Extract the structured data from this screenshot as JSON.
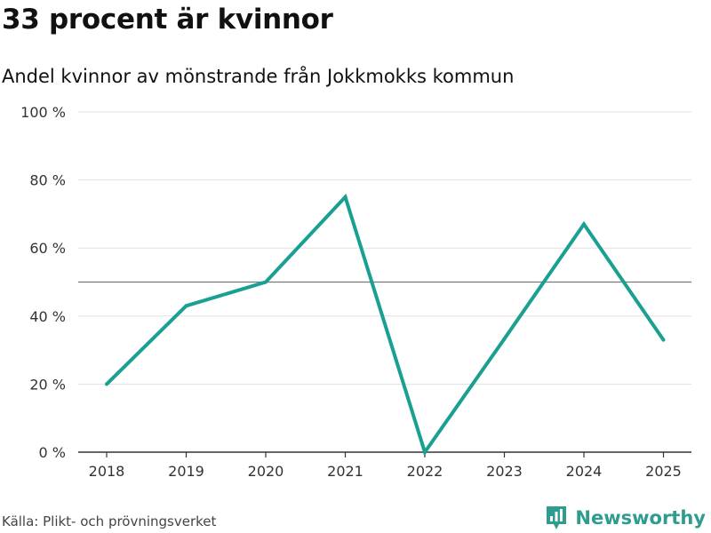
{
  "header": {
    "title": "33 procent är kvinnor",
    "subtitle": "Andel kvinnor av mönstrande från Jokkmokks kommun"
  },
  "footer": {
    "source": "Källa: Plikt- och prövningsverket",
    "brand": "Newsworthy"
  },
  "colors": {
    "line": "#1aa093",
    "grid": "#e1e1e1",
    "reference": "#777777",
    "axis": "#333333",
    "brand": "#2e9c8e"
  },
  "chart_data": {
    "type": "line",
    "title": "33 procent är kvinnor",
    "subtitle": "Andel kvinnor av mönstrande från Jokkmokks kommun",
    "x": [
      "2018",
      "2019",
      "2020",
      "2021",
      "2022",
      "2023",
      "2024",
      "2025"
    ],
    "series": [
      {
        "values": [
          20,
          43,
          50,
          75,
          0,
          33.3,
          67,
          33
        ]
      }
    ],
    "ylim": [
      0,
      100
    ],
    "yticks": [
      0,
      20,
      40,
      60,
      80,
      100
    ],
    "ytick_labels": [
      "0 %",
      "20 %",
      "40 %",
      "60 %",
      "80 %",
      "100 %"
    ],
    "reference_line": 50,
    "grid": true,
    "xlabel": "",
    "ylabel": ""
  }
}
